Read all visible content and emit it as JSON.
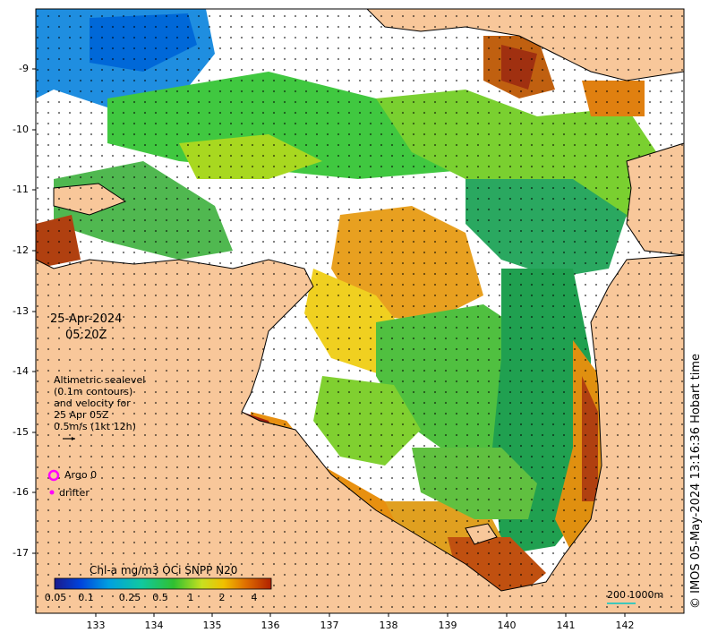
{
  "map": {
    "y_ticks": [
      "-9",
      "-10",
      "-11",
      "-12",
      "-13",
      "-14",
      "-15",
      "-16",
      "-17"
    ],
    "x_ticks": [
      "133",
      "134",
      "135",
      "136",
      "137",
      "138",
      "139",
      "140",
      "141",
      "142"
    ],
    "date": "25-Apr-2024",
    "time": "05:20Z",
    "altimetry_lines": [
      "Altimetric sealevel",
      "(0.1m contours)",
      "and velocity for",
      "25 Apr 05Z",
      "0.5m/s (1kt 12h)"
    ],
    "legend": {
      "argo_label": "Argo 0",
      "drifter_label": "drifter"
    },
    "colorbar": {
      "title": "Chl-a mg/m3 OCi SNPP N20",
      "ticks": [
        "0.05",
        "0.1",
        "0.25",
        "0.5",
        "1",
        "2",
        "4"
      ]
    },
    "scale_label": "200  1000m",
    "credit": "© IMOS 05-May-2024 13:16:36 Hobart time",
    "colors": {
      "land": "#f8c79a",
      "coast": "#000000",
      "argo": "#ff00ff",
      "drifter": "#ff00ff"
    }
  }
}
